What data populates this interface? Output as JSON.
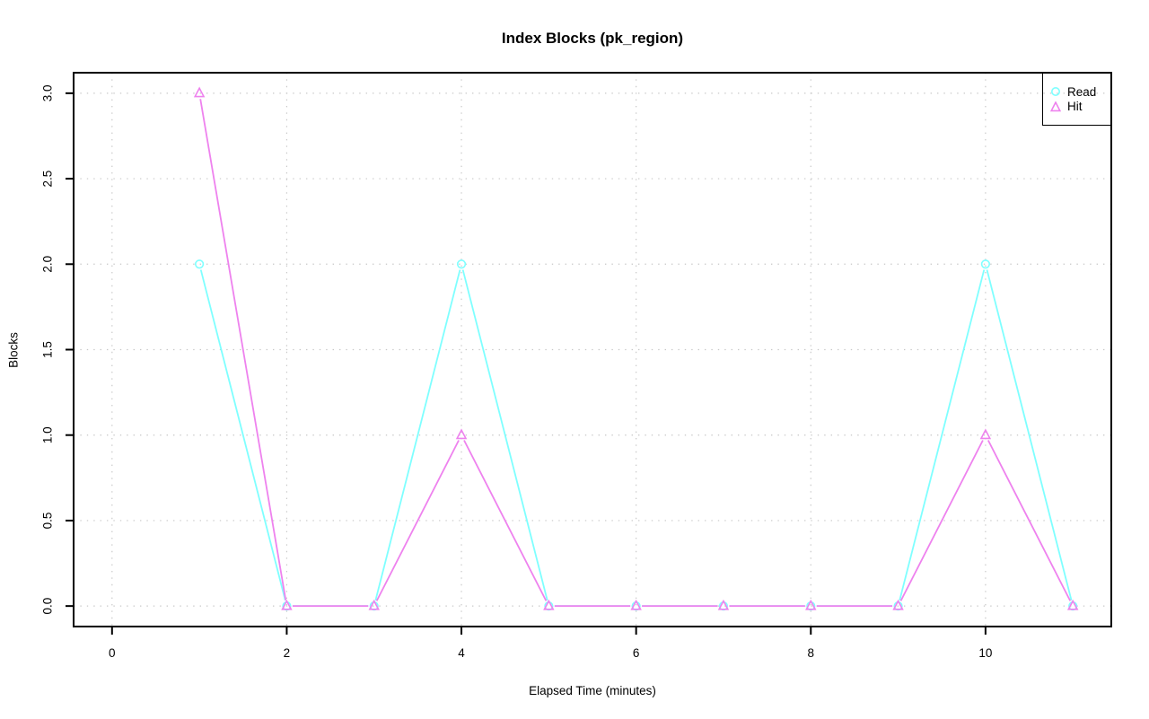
{
  "chart_data": {
    "type": "line",
    "title": "Index Blocks (pk_region)",
    "xlabel": "Elapsed Time (minutes)",
    "ylabel": "Blocks",
    "x": [
      1,
      2,
      3,
      4,
      5,
      6,
      7,
      8,
      9,
      10,
      11
    ],
    "series": [
      {
        "name": "Read",
        "marker": "circle",
        "color": "#7FFFFF",
        "values": [
          2,
          0,
          0,
          2,
          0,
          0,
          0,
          0,
          0,
          2,
          0
        ]
      },
      {
        "name": "Hit",
        "marker": "triangle",
        "color": "#EE82EE",
        "values": [
          3,
          0,
          0,
          1,
          0,
          0,
          0,
          0,
          0,
          1,
          0
        ]
      }
    ],
    "xlim": [
      0,
      11
    ],
    "ylim": [
      0,
      3
    ],
    "xticks": [
      0,
      2,
      4,
      6,
      8,
      10
    ],
    "xtick_labels": [
      "0",
      "2",
      "4",
      "6",
      "8",
      "10"
    ],
    "yticks": [
      0,
      0.5,
      1,
      1.5,
      2,
      2.5,
      3
    ],
    "ytick_labels": [
      "0.0",
      "0.5",
      "1.0",
      "1.5",
      "2.0",
      "2.5",
      "3.0"
    ],
    "grid": true,
    "grid_style": "dotted",
    "legend_position": "top-right",
    "colors": {
      "axis": "#000000",
      "grid": "#C8C8C8",
      "text": "#000000",
      "background": "#FFFFFF"
    }
  }
}
